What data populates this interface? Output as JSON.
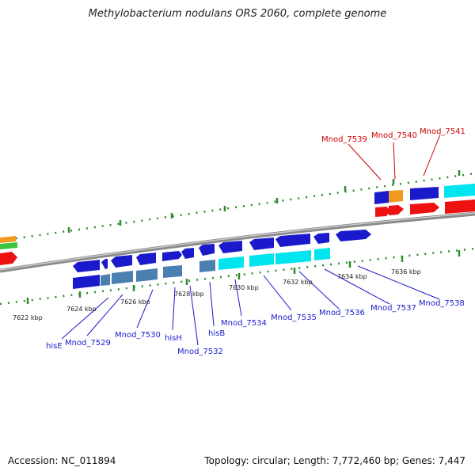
{
  "title": "Methylobacterium nodulans ORS 2060, complete genome",
  "footer": {
    "accession": "Accession: NC_011894",
    "summary": "Topology: circular; Length: 7,772,460 bp; Genes: 7,447"
  },
  "colors": {
    "backbone": "#7f7f7f",
    "tick": "#2e8b2e",
    "blue": "#1a1acc",
    "steelblue": "#4a7fb0",
    "cyan": "#00e5ee",
    "red": "#ee1111",
    "orange": "#f09a20",
    "green": "#3cc43c",
    "label_blue": "#1a1acc",
    "label_red": "#cc0000"
  },
  "kbp_labels": [
    "7622 kbp",
    "7624 kbp",
    "7626 kbp",
    "7628 kbp",
    "7630 kbp",
    "7632 kbp",
    "7634 kbp",
    "7636 kbp"
  ],
  "gene_labels_bottom": [
    "hisE",
    "Mnod_7529",
    "Mnod_7530",
    "hisH",
    "Mnod_7532",
    "hisB",
    "Mnod_7534",
    "Mnod_7535",
    "Mnod_7536",
    "Mnod_7537",
    "Mnod_7538"
  ],
  "gene_labels_top": [
    "Mnod_7539",
    "Mnod_7540",
    "Mnod_7541"
  ]
}
